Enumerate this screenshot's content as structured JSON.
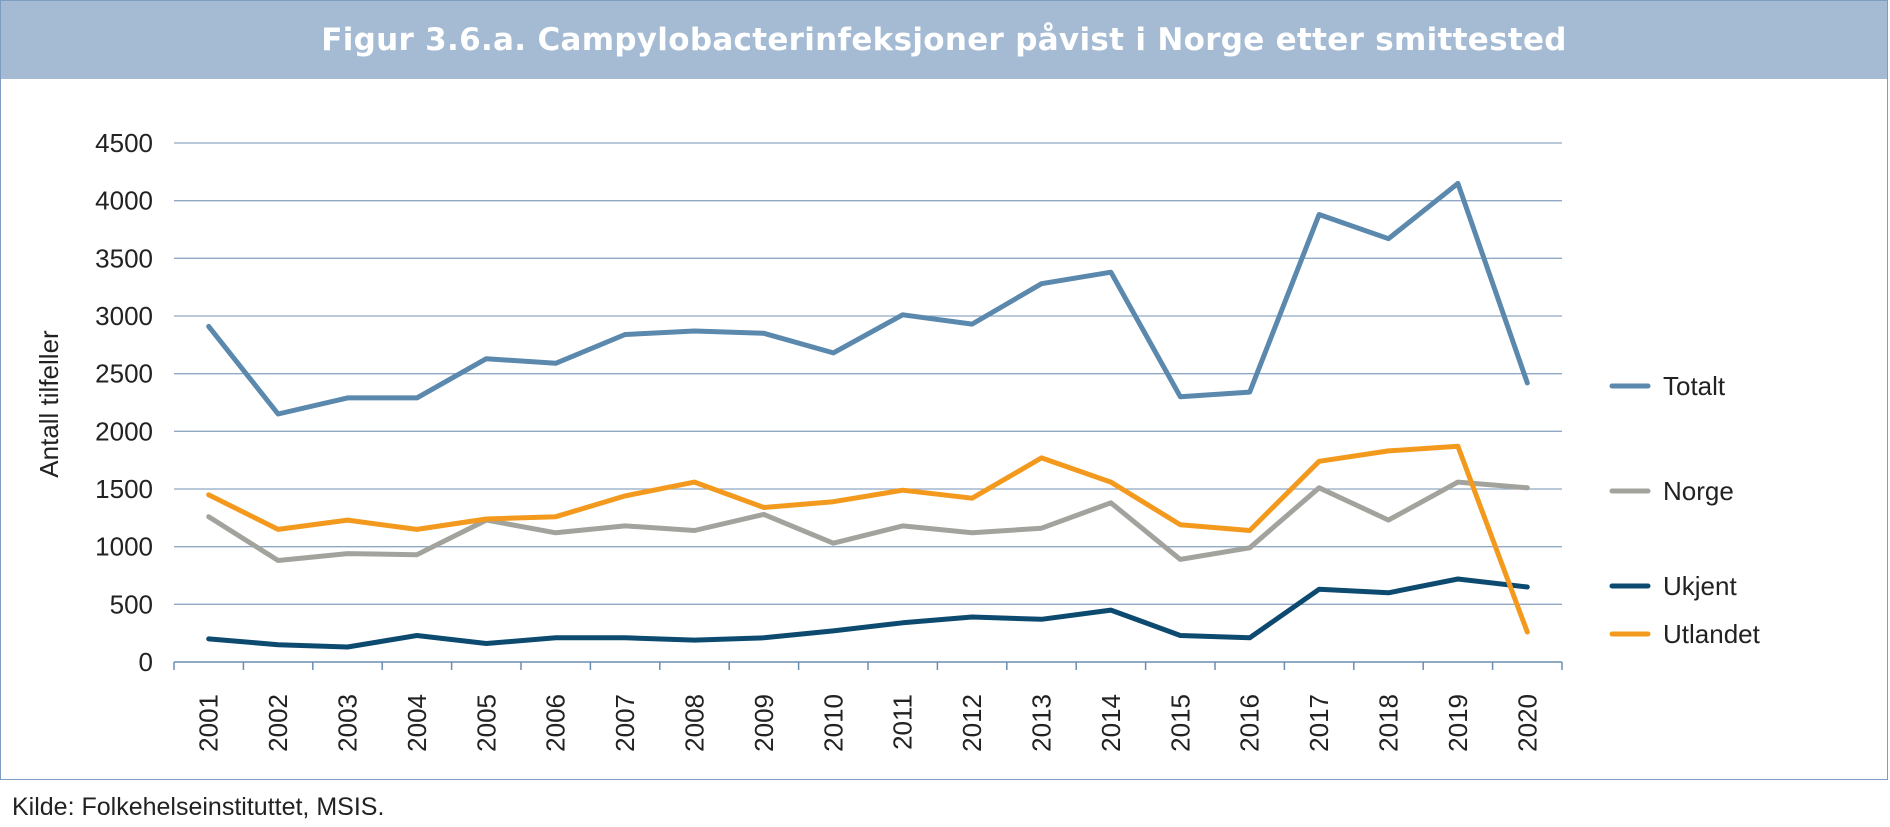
{
  "figure": {
    "title": "Figur 3.6.a. Campylobacterinfeksjoner påvist i Norge etter smittested",
    "source": "Kilde: Folkehelseinstituttet, MSIS."
  },
  "chart_data": {
    "type": "line",
    "title": "Figur 3.6.a. Campylobacterinfeksjoner påvist i Norge etter smittested",
    "xlabel": "",
    "ylabel": "Antall tilfeller",
    "ylim": [
      0,
      4500
    ],
    "yticks": [
      0,
      500,
      1000,
      1500,
      2000,
      2500,
      3000,
      3500,
      4000,
      4500
    ],
    "grid": "horizontal",
    "legend": "right",
    "categories": [
      "2001",
      "2002",
      "2003",
      "2004",
      "2005",
      "2006",
      "2007",
      "2008",
      "2009",
      "2010",
      "2011",
      "2012",
      "2013",
      "2014",
      "2015",
      "2016",
      "2017",
      "2018",
      "2019",
      "2020"
    ],
    "series": [
      {
        "name": "Totalt",
        "color": "#5b88ad",
        "values": [
          2910,
          2150,
          2290,
          2290,
          2630,
          2590,
          2840,
          2870,
          2850,
          2680,
          3010,
          2930,
          3280,
          3380,
          2300,
          2340,
          3880,
          3670,
          4150,
          2420
        ]
      },
      {
        "name": "Norge",
        "color": "#a3a39e",
        "values": [
          1260,
          880,
          940,
          930,
          1230,
          1120,
          1180,
          1140,
          1280,
          1030,
          1180,
          1120,
          1160,
          1380,
          890,
          990,
          1510,
          1230,
          1560,
          1510
        ]
      },
      {
        "name": "Ukjent",
        "color": "#0d4a70",
        "values": [
          200,
          150,
          130,
          230,
          160,
          210,
          210,
          190,
          210,
          270,
          340,
          390,
          370,
          450,
          230,
          210,
          630,
          600,
          720,
          650
        ]
      },
      {
        "name": "Utlandet",
        "color": "#f39a1e",
        "values": [
          1450,
          1150,
          1230,
          1150,
          1240,
          1260,
          1440,
          1560,
          1340,
          1390,
          1490,
          1420,
          1770,
          1560,
          1190,
          1140,
          1740,
          1830,
          1870,
          260
        ]
      }
    ]
  }
}
